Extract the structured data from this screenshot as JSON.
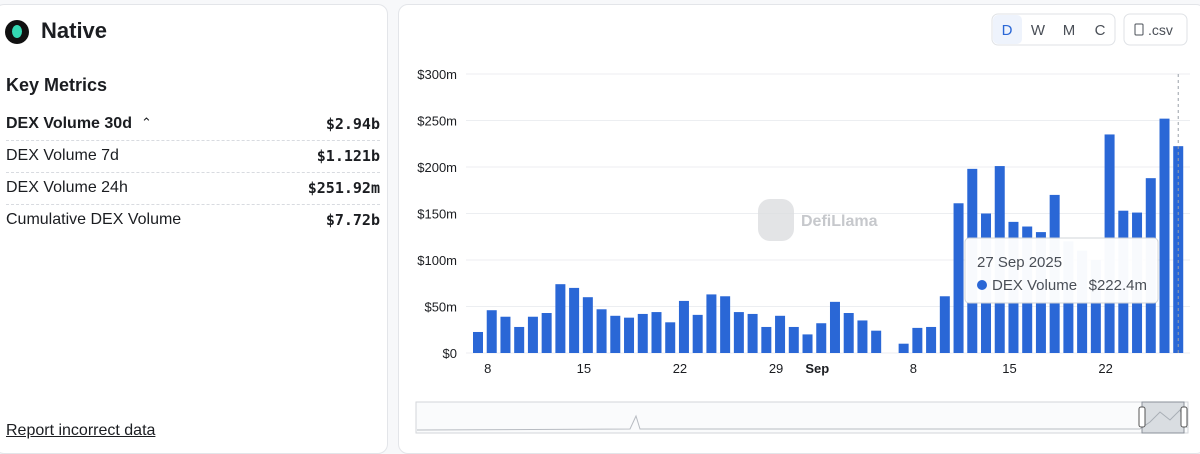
{
  "header": {
    "title": "Native"
  },
  "metrics": {
    "title": "Key Metrics",
    "rows": [
      {
        "label": "DEX Volume 30d",
        "value": "$2.94b"
      },
      {
        "label": "DEX Volume 7d",
        "value": "$1.121b"
      },
      {
        "label": "DEX Volume 24h",
        "value": "$251.92m"
      },
      {
        "label": "Cumulative DEX Volume",
        "value": "$7.72b"
      }
    ]
  },
  "footer_link": "Report incorrect data",
  "controls": {
    "periods": [
      "D",
      "W",
      "M",
      "C"
    ],
    "csv": ".csv"
  },
  "watermark": "DefiLlama",
  "chart_data": {
    "type": "bar",
    "categories": [
      null,
      "8",
      null,
      null,
      null,
      null,
      null,
      null,
      "15",
      null,
      null,
      null,
      null,
      null,
      null,
      "22",
      null,
      null,
      null,
      null,
      null,
      null,
      "29",
      null,
      null,
      "Sep",
      null,
      null,
      null,
      null,
      null,
      null,
      "8",
      null,
      null,
      null,
      null,
      null,
      null,
      "15",
      null,
      null,
      null,
      null,
      null,
      null,
      "22",
      null,
      null,
      null,
      null,
      null
    ],
    "series": [
      {
        "name": "DEX Volume",
        "color": "#2a67d6",
        "values": [
          22.6,
          46,
          39,
          28,
          39,
          43,
          74,
          70,
          60,
          47,
          40,
          38,
          42,
          44,
          33,
          56,
          41,
          63,
          61,
          44,
          42,
          28,
          40,
          28,
          20,
          32,
          55,
          43,
          35,
          24,
          0,
          10,
          27,
          28,
          61,
          161,
          198,
          150,
          201,
          141,
          136,
          130,
          170,
          120,
          110,
          100,
          235,
          153,
          151,
          188,
          252,
          222.4
        ]
      }
    ],
    "ylim": [
      0,
      300
    ],
    "yticks": [
      {
        "value": 0,
        "label": "$0"
      },
      {
        "value": 50,
        "label": "$50m"
      },
      {
        "value": 100,
        "label": "$100m"
      },
      {
        "value": 150,
        "label": "$150m"
      },
      {
        "value": 200,
        "label": "$200m"
      },
      {
        "value": 250,
        "label": "$250m"
      },
      {
        "value": 300,
        "label": "$300m"
      }
    ],
    "grid": true,
    "tooltip": {
      "title": "27 Sep 2025",
      "label": "$222.4m"
    }
  }
}
